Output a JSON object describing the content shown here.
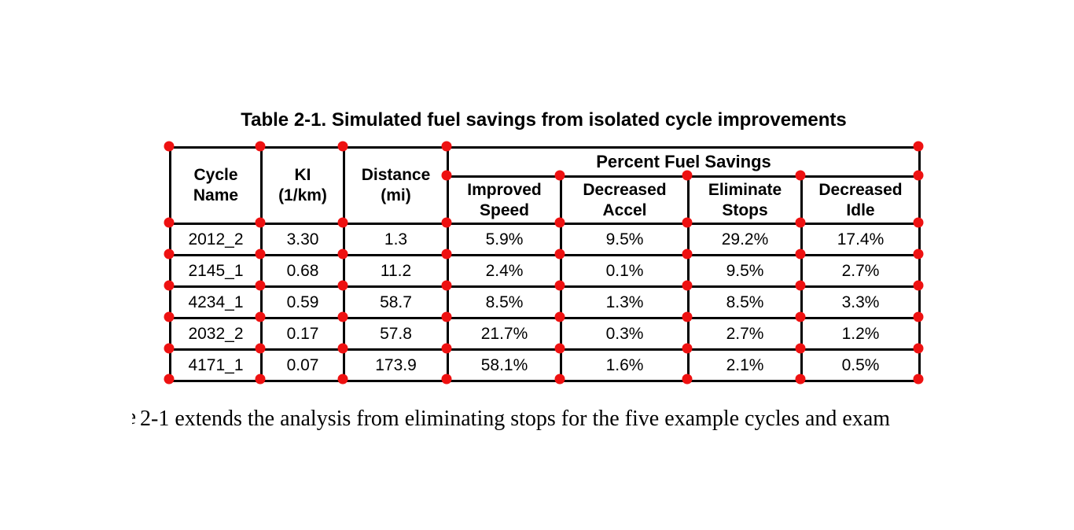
{
  "caption": "Table 2-1. Simulated fuel savings from isolated cycle improvements",
  "table": {
    "col_headers": [
      {
        "line1": "Cycle",
        "line2": "Name"
      },
      {
        "line1": "KI",
        "line2": "(1/km)"
      },
      {
        "line1": "Distance",
        "line2": "(mi)"
      }
    ],
    "group_header": "Percent Fuel Savings",
    "sub_headers": [
      {
        "line1": "Improved",
        "line2": "Speed"
      },
      {
        "line1": "Decreased",
        "line2": "Accel"
      },
      {
        "line1": "Eliminate",
        "line2": "Stops"
      },
      {
        "line1": "Decreased",
        "line2": "Idle"
      }
    ],
    "rows": [
      [
        "2012_2",
        "3.30",
        "1.3",
        "5.9%",
        "9.5%",
        "29.2%",
        "17.4%"
      ],
      [
        "2145_1",
        "0.68",
        "11.2",
        "2.4%",
        "0.1%",
        "9.5%",
        "2.7%"
      ],
      [
        "4234_1",
        "0.59",
        "58.7",
        "8.5%",
        "1.3%",
        "8.5%",
        "3.3%"
      ],
      [
        "2032_2",
        "0.17",
        "57.8",
        "21.7%",
        "0.3%",
        "2.7%",
        "1.2%"
      ],
      [
        "4171_1",
        "0.07",
        "173.9",
        "58.1%",
        "1.6%",
        "2.1%",
        "0.5%"
      ]
    ]
  },
  "paragraph": {
    "left_fragment": "e",
    "visible_text": "2-1 extends the analysis from eliminating stops for the five example cycles and exam"
  },
  "overlay": {
    "marker_color": "#ee1111"
  }
}
